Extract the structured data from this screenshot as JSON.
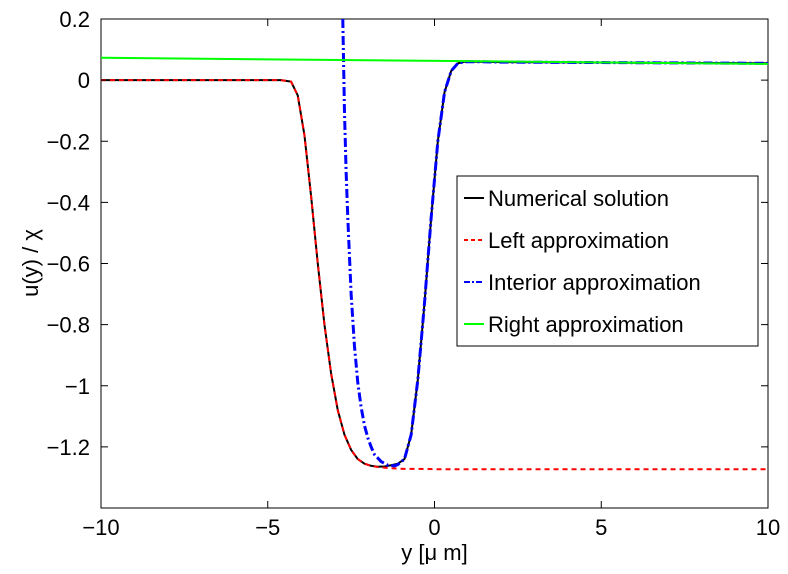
{
  "chart_data": {
    "type": "line",
    "title": "",
    "xlabel": "y [μ m]",
    "ylabel": "u(y) / χ",
    "xlim": [
      -10,
      10
    ],
    "ylim": [
      -1.4,
      0.2
    ],
    "xticks": [
      -10,
      -5,
      0,
      5,
      10
    ],
    "xtick_labels": [
      "−10",
      "−5",
      "0",
      "5",
      "10"
    ],
    "yticks": [
      0.2,
      0,
      -0.2,
      -0.4,
      -0.6,
      -0.8,
      -1,
      -1.2
    ],
    "ytick_labels": [
      "0.2",
      "0",
      "−0.2",
      "−0.4",
      "−0.6",
      "−0.8",
      "−1",
      "−1.2"
    ],
    "grid": false,
    "legend_position": "right",
    "series": [
      {
        "name": "Numerical solution",
        "color": "#000000",
        "style": "solid",
        "x": [
          -10,
          -6,
          -5,
          -4.6,
          -4.3,
          -4.1,
          -3.9,
          -3.7,
          -3.5,
          -3.3,
          -3.1,
          -2.9,
          -2.7,
          -2.5,
          -2.3,
          -2.1,
          -1.9,
          -1.7,
          -1.5,
          -1.3,
          -1.1,
          -0.9,
          -0.7,
          -0.5,
          -0.3,
          -0.1,
          0.1,
          0.3,
          0.5,
          0.7,
          0.9,
          1.1,
          1.4,
          2,
          4,
          6,
          8,
          10
        ],
        "y": [
          0,
          0,
          0,
          0,
          -0.005,
          -0.05,
          -0.18,
          -0.38,
          -0.6,
          -0.8,
          -0.96,
          -1.08,
          -1.16,
          -1.21,
          -1.24,
          -1.255,
          -1.262,
          -1.265,
          -1.264,
          -1.26,
          -1.255,
          -1.24,
          -1.16,
          -0.98,
          -0.73,
          -0.45,
          -0.2,
          -0.04,
          0.03,
          0.055,
          0.06,
          0.06,
          0.06,
          0.059,
          0.058,
          0.057,
          0.056,
          0.055
        ]
      },
      {
        "name": "Left approximation",
        "color": "#ff0000",
        "style": "dashed",
        "x": [
          -10,
          -6,
          -5,
          -4.6,
          -4.3,
          -4.1,
          -3.9,
          -3.7,
          -3.5,
          -3.3,
          -3.1,
          -2.9,
          -2.7,
          -2.5,
          -2.3,
          -2.1,
          -1.9,
          -1.7,
          -1.5,
          -1.3,
          -1.1,
          -0.9,
          -0.5,
          0,
          2,
          4,
          6,
          8,
          10
        ],
        "y": [
          0,
          0,
          0,
          0,
          -0.005,
          -0.05,
          -0.18,
          -0.38,
          -0.6,
          -0.8,
          -0.96,
          -1.08,
          -1.16,
          -1.21,
          -1.24,
          -1.255,
          -1.262,
          -1.266,
          -1.268,
          -1.27,
          -1.271,
          -1.272,
          -1.272,
          -1.273,
          -1.273,
          -1.273,
          -1.273,
          -1.273,
          -1.273
        ]
      },
      {
        "name": "Interior approximation",
        "color": "#0000ff",
        "style": "dashdot",
        "x": [
          -2.75,
          -2.7,
          -2.65,
          -2.6,
          -2.5,
          -2.4,
          -2.3,
          -2.2,
          -2.1,
          -2.0,
          -1.9,
          -1.8,
          -1.6,
          -1.4,
          -1.2,
          -1.1,
          -0.9,
          -0.7,
          -0.5,
          -0.3,
          -0.1,
          0.1,
          0.3,
          0.5,
          0.7,
          0.9,
          1.1,
          1.4,
          2,
          4,
          6,
          8,
          10
        ],
        "y": [
          0.2,
          -0.1,
          -0.3,
          -0.45,
          -0.7,
          -0.87,
          -0.99,
          -1.07,
          -1.13,
          -1.17,
          -1.2,
          -1.225,
          -1.248,
          -1.26,
          -1.262,
          -1.258,
          -1.24,
          -1.16,
          -0.98,
          -0.73,
          -0.45,
          -0.2,
          -0.04,
          0.03,
          0.055,
          0.06,
          0.06,
          0.06,
          0.059,
          0.058,
          0.057,
          0.056,
          0.055
        ]
      },
      {
        "name": "Right approximation",
        "color": "#00ff00",
        "style": "solid",
        "x": [
          -10,
          10
        ],
        "y": [
          0.073,
          0.053
        ]
      }
    ]
  }
}
